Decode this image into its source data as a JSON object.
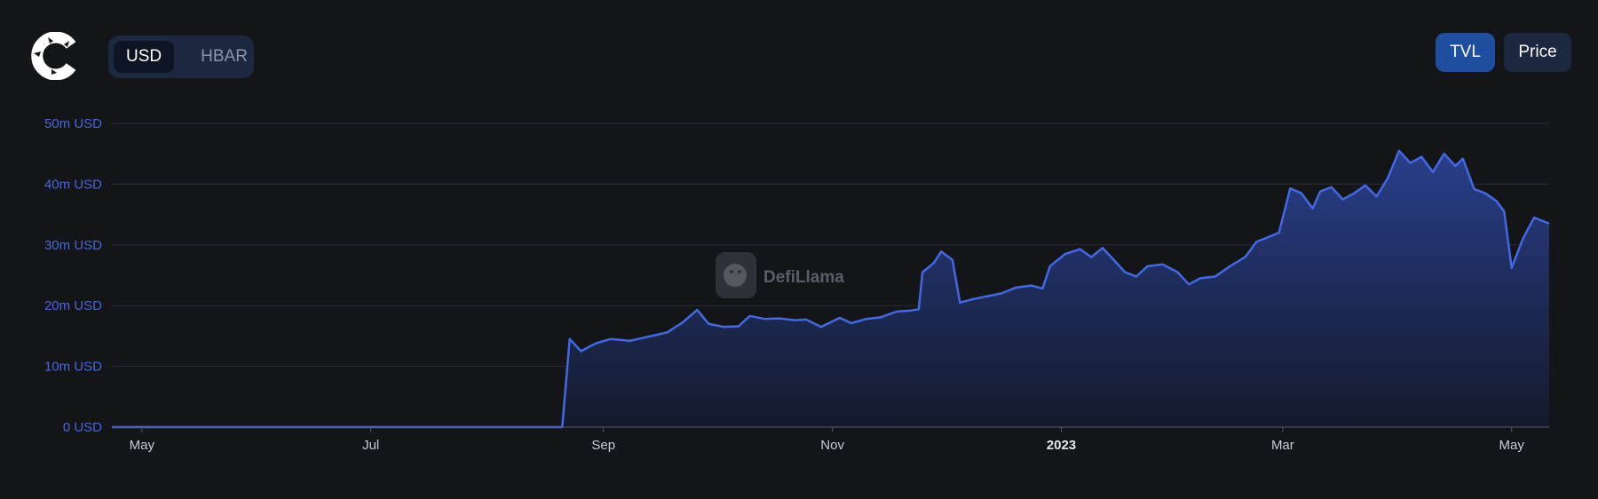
{
  "header": {
    "logo_icon": "protocol-logo-icon",
    "currency_toggle": {
      "options": [
        "USD",
        "HBAR"
      ],
      "selected": "USD"
    },
    "metric_buttons": [
      {
        "label": "TVL",
        "active": true
      },
      {
        "label": "Price",
        "active": false
      }
    ]
  },
  "watermark": {
    "text": "DefiLlama",
    "icon": "llama-icon"
  },
  "colors": {
    "line": "#4468e0",
    "fill_top": "#2a4191",
    "background": "#141519"
  },
  "chart_data": {
    "type": "area",
    "title": "",
    "xlabel": "",
    "ylabel": "",
    "series": [
      {
        "name": "TVL",
        "unit": "USD"
      }
    ],
    "ylim": [
      0,
      50000000
    ],
    "yticks": [
      {
        "value": 0,
        "label": "0 USD"
      },
      {
        "value": 10000000,
        "label": "10m USD"
      },
      {
        "value": 20000000,
        "label": "20m USD"
      },
      {
        "value": 30000000,
        "label": "30m USD"
      },
      {
        "value": 40000000,
        "label": "40m USD"
      },
      {
        "value": 50000000,
        "label": "50m USD"
      }
    ],
    "xlim": [
      "2022-04-23",
      "2023-05-11"
    ],
    "xticks": [
      {
        "date": "2022-05-01",
        "label": "May",
        "bold": false
      },
      {
        "date": "2022-07-01",
        "label": "Jul",
        "bold": false
      },
      {
        "date": "2022-09-01",
        "label": "Sep",
        "bold": false
      },
      {
        "date": "2022-11-01",
        "label": "Nov",
        "bold": false
      },
      {
        "date": "2023-01-01",
        "label": "2023",
        "bold": true
      },
      {
        "date": "2023-03-01",
        "label": "Mar",
        "bold": false
      },
      {
        "date": "2023-05-01",
        "label": "May",
        "bold": false
      }
    ],
    "grid": true,
    "legend": "none",
    "points": [
      [
        "2022-04-23",
        0
      ],
      [
        "2022-06-01",
        0
      ],
      [
        "2022-07-01",
        0
      ],
      [
        "2022-08-01",
        0
      ],
      [
        "2022-08-21",
        0
      ],
      [
        "2022-08-23",
        14.5
      ],
      [
        "2022-08-26",
        12.5
      ],
      [
        "2022-08-30",
        13.8
      ],
      [
        "2022-09-03",
        14.5
      ],
      [
        "2022-09-08",
        14.2
      ],
      [
        "2022-09-13",
        14.9
      ],
      [
        "2022-09-18",
        15.6
      ],
      [
        "2022-09-22",
        17.2
      ],
      [
        "2022-09-26",
        19.3
      ],
      [
        "2022-09-29",
        17.0
      ],
      [
        "2022-10-03",
        16.5
      ],
      [
        "2022-10-07",
        16.6
      ],
      [
        "2022-10-10",
        18.3
      ],
      [
        "2022-10-14",
        17.8
      ],
      [
        "2022-10-18",
        17.9
      ],
      [
        "2022-10-22",
        17.6
      ],
      [
        "2022-10-25",
        17.7
      ],
      [
        "2022-10-29",
        16.5
      ],
      [
        "2022-11-01",
        17.4
      ],
      [
        "2022-11-03",
        18.0
      ],
      [
        "2022-11-06",
        17.1
      ],
      [
        "2022-11-10",
        17.8
      ],
      [
        "2022-11-14",
        18.1
      ],
      [
        "2022-11-18",
        19.0
      ],
      [
        "2022-11-22",
        19.2
      ],
      [
        "2022-11-24",
        19.4
      ],
      [
        "2022-11-25",
        25.5
      ],
      [
        "2022-11-28",
        27.0
      ],
      [
        "2022-11-30",
        28.9
      ],
      [
        "2022-12-03",
        27.5
      ],
      [
        "2022-12-05",
        20.5
      ],
      [
        "2022-12-08",
        21.0
      ],
      [
        "2022-12-12",
        21.5
      ],
      [
        "2022-12-16",
        22.0
      ],
      [
        "2022-12-20",
        23.0
      ],
      [
        "2022-12-24",
        23.3
      ],
      [
        "2022-12-27",
        22.8
      ],
      [
        "2022-12-29",
        26.5
      ],
      [
        "2023-01-02",
        28.5
      ],
      [
        "2023-01-06",
        29.3
      ],
      [
        "2023-01-09",
        28.0
      ],
      [
        "2023-01-12",
        29.5
      ],
      [
        "2023-01-15",
        27.5
      ],
      [
        "2023-01-18",
        25.5
      ],
      [
        "2023-01-21",
        24.8
      ],
      [
        "2023-01-24",
        26.5
      ],
      [
        "2023-01-28",
        26.8
      ],
      [
        "2023-02-01",
        25.5
      ],
      [
        "2023-02-04",
        23.5
      ],
      [
        "2023-02-07",
        24.5
      ],
      [
        "2023-02-11",
        24.8
      ],
      [
        "2023-02-15",
        26.5
      ],
      [
        "2023-02-19",
        28.0
      ],
      [
        "2023-02-22",
        30.5
      ],
      [
        "2023-02-26",
        31.5
      ],
      [
        "2023-02-28",
        32.0
      ],
      [
        "2023-03-03",
        39.3
      ],
      [
        "2023-03-06",
        38.5
      ],
      [
        "2023-03-09",
        36.0
      ],
      [
        "2023-03-11",
        38.8
      ],
      [
        "2023-03-14",
        39.5
      ],
      [
        "2023-03-17",
        37.5
      ],
      [
        "2023-03-20",
        38.5
      ],
      [
        "2023-03-23",
        39.8
      ],
      [
        "2023-03-26",
        38.0
      ],
      [
        "2023-03-29",
        41.0
      ],
      [
        "2023-04-01",
        45.5
      ],
      [
        "2023-04-04",
        43.5
      ],
      [
        "2023-04-07",
        44.5
      ],
      [
        "2023-04-10",
        42.0
      ],
      [
        "2023-04-13",
        45.0
      ],
      [
        "2023-04-16",
        43.0
      ],
      [
        "2023-04-18",
        44.2
      ],
      [
        "2023-04-21",
        39.2
      ],
      [
        "2023-04-24",
        38.5
      ],
      [
        "2023-04-27",
        37.2
      ],
      [
        "2023-04-29",
        35.5
      ],
      [
        "2023-05-01",
        26.2
      ],
      [
        "2023-05-04",
        31.0
      ],
      [
        "2023-05-07",
        34.5
      ],
      [
        "2023-05-09",
        34.0
      ],
      [
        "2023-05-11",
        33.5
      ]
    ],
    "point_units": "millions USD"
  }
}
